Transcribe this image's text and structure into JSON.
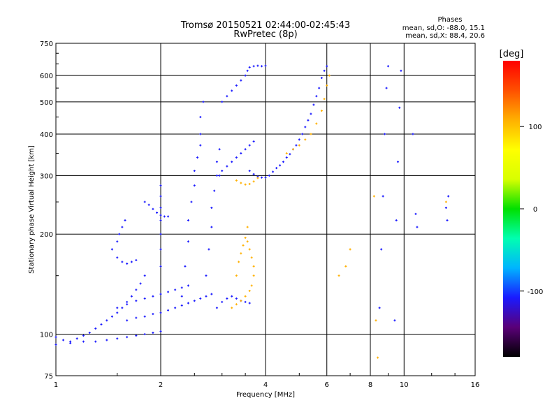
{
  "chart_data": {
    "type": "scatter",
    "title": "Tromsø 20150521 02:44:00-02:45:43",
    "subtitle": "RwPretec (8p)",
    "stats_heading": "Phases",
    "stats_lines": [
      "mean, sd,O: -88.0, 15.1",
      "mean, sd,X:  88.4, 20.6"
    ],
    "xlabel": "Frequency [MHz]",
    "ylabel": "Stationary phase Virtual Height [km]",
    "xscale": "log",
    "yscale": "log",
    "xlim": [
      1,
      16
    ],
    "ylim": [
      75,
      750
    ],
    "grid": true,
    "x_ticks": [
      {
        "value": 1,
        "label": "1"
      },
      {
        "value": 2,
        "label": "2"
      },
      {
        "value": 4,
        "label": "4"
      },
      {
        "value": 6,
        "label": "6"
      },
      {
        "value": 8,
        "label": "8"
      },
      {
        "value": 10,
        "label": "10"
      },
      {
        "value": 16,
        "label": "16"
      }
    ],
    "y_ticks": [
      {
        "value": 75,
        "label": "75"
      },
      {
        "value": 100,
        "label": "100"
      },
      {
        "value": 200,
        "label": "200"
      },
      {
        "value": 300,
        "label": "300"
      },
      {
        "value": 400,
        "label": "400"
      },
      {
        "value": 500,
        "label": "500"
      },
      {
        "value": 600,
        "label": "600"
      },
      {
        "value": 750,
        "label": "750"
      }
    ],
    "colorbar": {
      "label": "[deg]",
      "range": [
        -180,
        180
      ],
      "ticks": [
        {
          "value": 100,
          "label": "100"
        },
        {
          "value": 0,
          "label": "0"
        },
        {
          "value": -100,
          "label": "-100"
        }
      ],
      "colors": [
        "#000000",
        "#5a0078",
        "#1a1aff",
        "#00b4ff",
        "#00ffb0",
        "#00e000",
        "#d8ff00",
        "#ffff00",
        "#ffb000",
        "#ff5000",
        "#ff0000"
      ]
    },
    "series": [
      {
        "phase": -95,
        "points": [
          [
            1.0,
            98
          ],
          [
            1.05,
            96
          ],
          [
            1.1,
            95
          ],
          [
            1.15,
            97
          ],
          [
            1.2,
            99
          ],
          [
            1.25,
            101
          ],
          [
            1.3,
            104
          ],
          [
            1.35,
            107
          ],
          [
            1.4,
            110
          ],
          [
            1.45,
            113
          ],
          [
            1.5,
            116
          ],
          [
            1.55,
            120
          ],
          [
            1.6,
            125
          ],
          [
            1.65,
            130
          ],
          [
            1.7,
            136
          ],
          [
            1.75,
            142
          ],
          [
            1.8,
            150
          ]
        ]
      },
      {
        "phase": -98,
        "points": [
          [
            1.0,
            93
          ],
          [
            1.1,
            94
          ],
          [
            1.2,
            95
          ],
          [
            1.3,
            95
          ],
          [
            1.4,
            96
          ],
          [
            1.5,
            97
          ],
          [
            1.6,
            98
          ],
          [
            1.7,
            99
          ],
          [
            1.8,
            100
          ],
          [
            1.9,
            101
          ],
          [
            2.0,
            102
          ]
        ]
      },
      {
        "phase": -100,
        "points": [
          [
            1.45,
            180
          ],
          [
            1.5,
            170
          ],
          [
            1.55,
            165
          ],
          [
            1.6,
            163
          ],
          [
            1.65,
            165
          ],
          [
            1.7,
            167
          ],
          [
            1.5,
            190
          ],
          [
            1.52,
            200
          ],
          [
            1.55,
            210
          ],
          [
            1.58,
            220
          ]
        ]
      },
      {
        "phase": -102,
        "points": [
          [
            1.5,
            120
          ],
          [
            1.6,
            123
          ],
          [
            1.7,
            126
          ],
          [
            1.8,
            128
          ],
          [
            1.9,
            130
          ],
          [
            2.0,
            132
          ],
          [
            2.1,
            134
          ],
          [
            2.2,
            136
          ],
          [
            2.3,
            138
          ],
          [
            2.4,
            140
          ]
        ]
      },
      {
        "phase": -96,
        "points": [
          [
            1.6,
            110
          ],
          [
            1.7,
            112
          ],
          [
            1.8,
            113
          ],
          [
            1.9,
            115
          ],
          [
            2.0,
            116
          ],
          [
            2.1,
            118
          ],
          [
            2.2,
            120
          ],
          [
            2.3,
            122
          ],
          [
            2.4,
            124
          ],
          [
            2.5,
            126
          ],
          [
            2.6,
            128
          ],
          [
            2.7,
            130
          ],
          [
            2.8,
            132
          ]
        ]
      },
      {
        "phase": -104,
        "points": [
          [
            1.8,
            250
          ],
          [
            1.85,
            245
          ],
          [
            1.9,
            238
          ],
          [
            1.95,
            232
          ],
          [
            2.0,
            228
          ],
          [
            2.05,
            226
          ],
          [
            2.1,
            226
          ]
        ]
      },
      {
        "phase": -97,
        "points": [
          [
            2.0,
            160
          ],
          [
            2.0,
            180
          ],
          [
            2.0,
            200
          ],
          [
            2.0,
            220
          ],
          [
            2.0,
            240
          ],
          [
            2.0,
            260
          ],
          [
            2.0,
            280
          ]
        ]
      },
      {
        "phase": -99,
        "points": [
          [
            2.3,
            130
          ],
          [
            2.35,
            160
          ],
          [
            2.4,
            190
          ],
          [
            2.4,
            220
          ],
          [
            2.45,
            250
          ],
          [
            2.5,
            280
          ],
          [
            2.5,
            310
          ],
          [
            2.55,
            340
          ],
          [
            2.6,
            370
          ],
          [
            2.6,
            400
          ],
          [
            2.6,
            450
          ],
          [
            2.65,
            500
          ]
        ]
      },
      {
        "phase": -101,
        "points": [
          [
            2.7,
            150
          ],
          [
            2.75,
            180
          ],
          [
            2.8,
            210
          ],
          [
            2.8,
            240
          ],
          [
            2.85,
            270
          ],
          [
            2.9,
            300
          ],
          [
            2.9,
            330
          ],
          [
            2.95,
            360
          ]
        ]
      },
      {
        "phase": -94,
        "points": [
          [
            2.9,
            120
          ],
          [
            3.0,
            125
          ],
          [
            3.1,
            128
          ],
          [
            3.2,
            130
          ],
          [
            3.3,
            128
          ],
          [
            3.4,
            126
          ],
          [
            3.5,
            125
          ],
          [
            3.6,
            124
          ]
        ]
      },
      {
        "phase": -103,
        "points": [
          [
            2.95,
            300
          ],
          [
            3.0,
            310
          ],
          [
            3.1,
            320
          ],
          [
            3.2,
            330
          ],
          [
            3.3,
            340
          ],
          [
            3.4,
            350
          ],
          [
            3.5,
            360
          ],
          [
            3.6,
            370
          ],
          [
            3.7,
            380
          ]
        ]
      },
      {
        "phase": -92,
        "points": [
          [
            3.0,
            500
          ],
          [
            3.1,
            520
          ],
          [
            3.2,
            540
          ],
          [
            3.3,
            560
          ],
          [
            3.4,
            580
          ],
          [
            3.5,
            600
          ],
          [
            3.55,
            620
          ],
          [
            3.6,
            635
          ],
          [
            3.7,
            640
          ],
          [
            3.8,
            642
          ],
          [
            3.9,
            640
          ],
          [
            4.0,
            642
          ]
        ]
      },
      {
        "phase": -105,
        "points": [
          [
            3.6,
            310
          ],
          [
            3.7,
            303
          ],
          [
            3.8,
            298
          ],
          [
            3.9,
            296
          ],
          [
            4.0,
            296
          ],
          [
            4.1,
            300
          ],
          [
            4.2,
            308
          ],
          [
            4.3,
            316
          ],
          [
            4.4,
            322
          ],
          [
            4.5,
            330
          ],
          [
            4.6,
            340
          ],
          [
            4.7,
            348
          ]
        ]
      },
      {
        "phase": -95,
        "points": [
          [
            4.8,
            360
          ],
          [
            4.9,
            370
          ],
          [
            5.0,
            385
          ],
          [
            5.1,
            400
          ],
          [
            5.2,
            420
          ],
          [
            5.3,
            440
          ],
          [
            5.4,
            460
          ],
          [
            5.5,
            490
          ],
          [
            5.6,
            520
          ],
          [
            5.7,
            550
          ],
          [
            5.8,
            590
          ],
          [
            5.9,
            620
          ],
          [
            6.0,
            640
          ]
        ]
      },
      {
        "phase": 95,
        "points": [
          [
            3.3,
            290
          ],
          [
            3.4,
            285
          ],
          [
            3.5,
            282
          ],
          [
            3.6,
            283
          ],
          [
            3.7,
            288
          ],
          [
            3.8,
            295
          ]
        ]
      },
      {
        "phase": 100,
        "points": [
          [
            3.2,
            120
          ],
          [
            3.3,
            123
          ],
          [
            3.4,
            126
          ],
          [
            3.5,
            130
          ],
          [
            3.6,
            135
          ],
          [
            3.65,
            140
          ],
          [
            3.7,
            150
          ],
          [
            3.7,
            160
          ],
          [
            3.65,
            170
          ],
          [
            3.6,
            180
          ],
          [
            3.55,
            190
          ]
        ]
      },
      {
        "phase": 92,
        "points": [
          [
            3.3,
            150
          ],
          [
            3.35,
            165
          ],
          [
            3.4,
            175
          ],
          [
            3.45,
            185
          ],
          [
            3.5,
            195
          ],
          [
            3.55,
            210
          ]
        ]
      },
      {
        "phase": 98,
        "points": [
          [
            4.6,
            350
          ],
          [
            4.8,
            360
          ],
          [
            5.0,
            370
          ],
          [
            5.2,
            385
          ],
          [
            5.4,
            400
          ],
          [
            5.6,
            430
          ],
          [
            5.8,
            470
          ],
          [
            5.9,
            510
          ],
          [
            6.0,
            560
          ],
          [
            6.1,
            600
          ]
        ]
      },
      {
        "phase": -110,
        "points": [
          [
            8.5,
            120
          ],
          [
            8.6,
            180
          ],
          [
            8.7,
            260
          ],
          [
            8.8,
            400
          ],
          [
            8.9,
            550
          ],
          [
            9.0,
            640
          ],
          [
            9.4,
            110
          ],
          [
            9.5,
            220
          ],
          [
            9.6,
            330
          ],
          [
            9.7,
            480
          ],
          [
            9.8,
            620
          ]
        ]
      },
      {
        "phase": -108,
        "points": [
          [
            13.2,
            240
          ],
          [
            13.3,
            220
          ],
          [
            13.4,
            260
          ],
          [
            10.6,
            400
          ],
          [
            10.8,
            230
          ],
          [
            10.9,
            210
          ]
        ]
      },
      {
        "phase": 110,
        "points": [
          [
            6.5,
            150
          ],
          [
            6.8,
            160
          ],
          [
            7.0,
            180
          ],
          [
            8.2,
            260
          ],
          [
            8.3,
            110
          ],
          [
            8.4,
            85
          ],
          [
            13.2,
            250
          ]
        ]
      }
    ]
  }
}
